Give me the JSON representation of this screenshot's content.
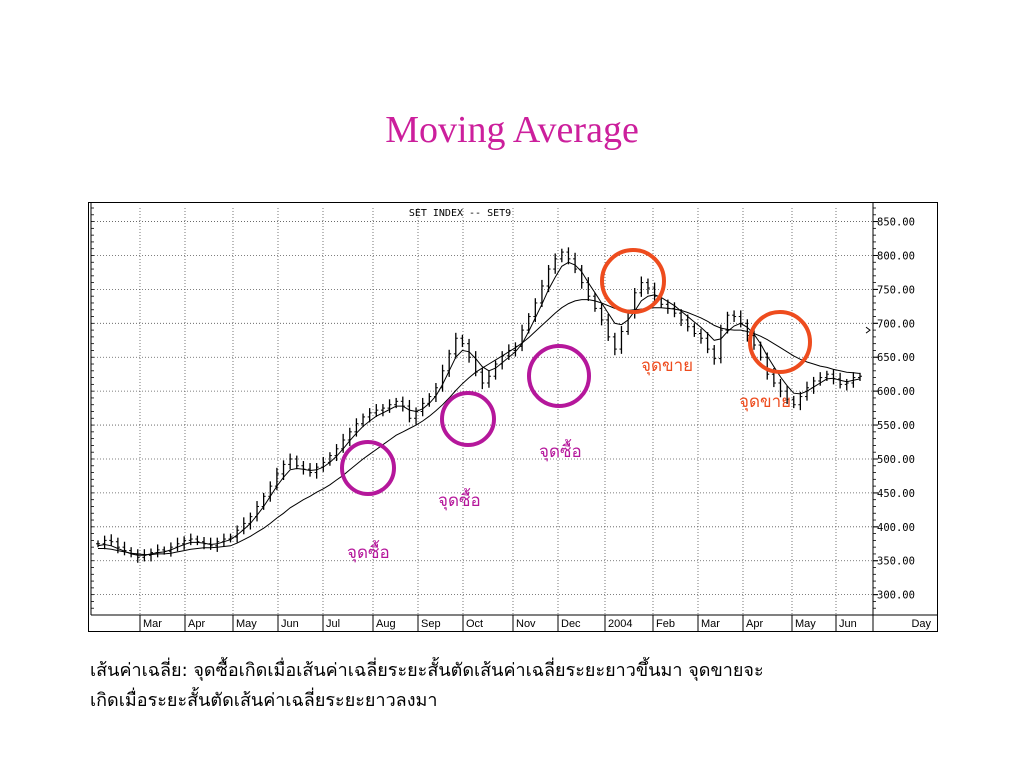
{
  "slide": {
    "title": "Moving Average",
    "caption_line1": "เส้นค่าเฉลี่ย: จุดซื้อเกิดเมื่อเส้นค่าเฉลี่ยระยะสั้นตัดเส้นค่าเฉลี่ยระยะยาวขึ้นมา จุดขายจะ",
    "caption_line2": "เกิดเมื่อระยะสั้นตัดเส้นค่าเฉลี่ยระยะยาวลงมา"
  },
  "chart_data": {
    "type": "line",
    "title": "SET INDEX -- SET9",
    "xlabel": "Day",
    "ylabel": "",
    "ylim": [
      270,
      870
    ],
    "grid": true,
    "x_ticks": [
      "Mar",
      "Apr",
      "May",
      "Jun",
      "Jul",
      "Aug",
      "Sep",
      "Oct",
      "Nov",
      "Dec",
      "2004",
      "Feb",
      "Mar",
      "Apr",
      "May",
      "Jun"
    ],
    "y_ticks": [
      "850.00",
      "800.00",
      "750.00",
      "700.00",
      "650.00",
      "600.00",
      "550.00",
      "500.00",
      "450.00",
      "400.00",
      "350.00",
      "300.00"
    ],
    "y_tick_values": [
      850,
      800,
      750,
      700,
      650,
      600,
      550,
      500,
      450,
      400,
      350,
      300
    ],
    "series": [
      {
        "role": "price",
        "values": [
          375,
          380,
          378,
          370,
          365,
          360,
          355,
          358,
          362,
          366,
          364,
          370,
          375,
          380,
          382,
          378,
          375,
          372,
          378,
          382,
          385,
          395,
          405,
          415,
          430,
          445,
          460,
          478,
          492,
          500,
          490,
          485,
          480,
          488,
          495,
          505,
          515,
          528,
          540,
          552,
          562,
          568,
          572,
          575,
          580,
          585,
          578,
          560,
          570,
          582,
          592,
          605,
          630,
          655,
          678,
          670,
          650,
          628,
          612,
          622,
          640,
          652,
          660,
          666,
          690,
          710,
          730,
          755,
          780,
          795,
          805,
          795,
          780,
          760,
          740,
          722,
          705,
          680,
          662,
          688,
          715,
          745,
          760,
          752,
          740,
          728,
          722,
          715,
          705,
          695,
          685,
          678,
          662,
          648,
          690,
          712,
          710,
          700,
          682,
          668,
          650,
          625,
          612,
          600,
          588,
          580,
          592,
          605,
          615,
          620,
          625,
          618,
          610,
          612,
          620,
          622
        ]
      },
      {
        "role": "short_ma",
        "values": [
          372,
          374,
          372,
          368,
          364,
          360,
          358,
          358,
          360,
          362,
          363,
          366,
          370,
          374,
          377,
          377,
          376,
          374,
          375,
          378,
          381,
          388,
          396,
          405,
          417,
          430,
          445,
          460,
          473,
          484,
          486,
          485,
          483,
          484,
          488,
          495,
          504,
          515,
          527,
          538,
          548,
          556,
          563,
          568,
          573,
          578,
          578,
          572,
          570,
          574,
          582,
          593,
          610,
          630,
          650,
          660,
          658,
          648,
          636,
          630,
          634,
          642,
          650,
          658,
          670,
          688,
          708,
          728,
          750,
          768,
          784,
          790,
          786,
          776,
          760,
          745,
          730,
          715,
          700,
          698,
          705,
          718,
          733,
          740,
          742,
          738,
          732,
          726,
          718,
          710,
          702,
          694,
          685,
          675,
          677,
          688,
          696,
          700,
          694,
          684,
          670,
          652,
          636,
          621,
          608,
          597,
          596,
          600,
          606,
          612,
          618,
          619,
          616,
          614,
          616,
          618
        ]
      },
      {
        "role": "long_ma",
        "values": [
          368,
          368,
          367,
          365,
          363,
          361,
          360,
          359,
          359,
          360,
          360,
          361,
          363,
          365,
          367,
          368,
          369,
          369,
          370,
          371,
          372,
          376,
          381,
          386,
          392,
          398,
          405,
          413,
          420,
          428,
          434,
          440,
          445,
          451,
          456,
          462,
          469,
          476,
          484,
          492,
          500,
          507,
          514,
          521,
          528,
          535,
          540,
          545,
          550,
          556,
          563,
          571,
          580,
          590,
          601,
          611,
          620,
          628,
          634,
          640,
          646,
          652,
          658,
          664,
          671,
          679,
          688,
          697,
          706,
          715,
          723,
          729,
          733,
          735,
          735,
          733,
          730,
          726,
          722,
          720,
          719,
          720,
          721,
          722,
          723,
          723,
          722,
          721,
          719,
          716,
          712,
          708,
          703,
          697,
          693,
          691,
          690,
          690,
          688,
          685,
          681,
          676,
          670,
          664,
          658,
          652,
          647,
          643,
          640,
          637,
          635,
          632,
          630,
          628,
          627,
          626
        ]
      }
    ]
  },
  "annotations": {
    "sell_label": "จุดขาย",
    "buy_label": "จุดซื้อ",
    "sell_color": "#ee4c1e",
    "buy_color": "#b5179b"
  }
}
